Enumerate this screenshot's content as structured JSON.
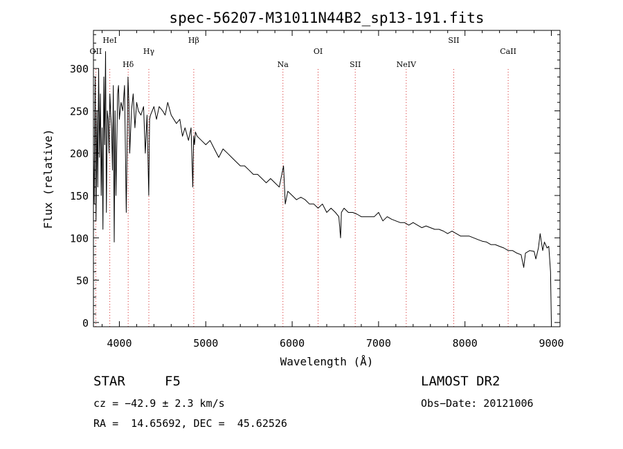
{
  "chart_data": {
    "type": "line",
    "title": "spec-56207-M31011N44B2_sp13-191.fits",
    "xlabel": "Wavelength (Å)",
    "ylabel": "Flux (relative)",
    "xlim": [
      3700,
      9100
    ],
    "ylim": [
      -5,
      345
    ],
    "xticks": [
      4000,
      5000,
      6000,
      7000,
      8000,
      9000
    ],
    "yticks": [
      0,
      50,
      100,
      150,
      200,
      250,
      300
    ],
    "grid": false,
    "line_color": "#000000",
    "marker_color": "#d62728",
    "series": [
      {
        "x": [
          3700,
          3710,
          3720,
          3730,
          3740,
          3750,
          3760,
          3770,
          3780,
          3790,
          3800,
          3810,
          3820,
          3830,
          3840,
          3850,
          3860,
          3870,
          3880,
          3890,
          3900,
          3910,
          3920,
          3930,
          3940,
          3950,
          3960,
          3970,
          3980,
          3990,
          4000,
          4020,
          4040,
          4060,
          4080,
          4100,
          4110,
          4120,
          4140,
          4160,
          4180,
          4200,
          4220,
          4250,
          4280,
          4300,
          4320,
          4340,
          4350,
          4360,
          4380,
          4400,
          4430,
          4460,
          4500,
          4530,
          4560,
          4600,
          4630,
          4660,
          4700,
          4730,
          4760,
          4800,
          4830,
          4850,
          4860,
          4870,
          4880,
          4900,
          4950,
          5000,
          5050,
          5100,
          5150,
          5200,
          5250,
          5300,
          5350,
          5400,
          5450,
          5500,
          5550,
          5600,
          5650,
          5700,
          5750,
          5800,
          5850,
          5900,
          5920,
          5950,
          6000,
          6050,
          6100,
          6150,
          6200,
          6250,
          6300,
          6350,
          6400,
          6450,
          6500,
          6540,
          6560,
          6570,
          6600,
          6650,
          6700,
          6750,
          6800,
          6850,
          6900,
          6950,
          7000,
          7050,
          7100,
          7150,
          7200,
          7250,
          7300,
          7350,
          7400,
          7450,
          7500,
          7550,
          7600,
          7650,
          7700,
          7750,
          7800,
          7850,
          7900,
          7950,
          8000,
          8050,
          8100,
          8150,
          8200,
          8250,
          8300,
          8350,
          8400,
          8450,
          8500,
          8550,
          8600,
          8650,
          8680,
          8700,
          8750,
          8800,
          8820,
          8850,
          8870,
          8900,
          8920,
          8950,
          8970,
          8990,
          9000
        ],
        "y": [
          200,
          140,
          290,
          120,
          250,
          160,
          300,
          195,
          270,
          150,
          230,
          110,
          290,
          210,
          320,
          130,
          250,
          240,
          200,
          270,
          245,
          230,
          180,
          280,
          95,
          250,
          150,
          210,
          270,
          280,
          240,
          260,
          250,
          280,
          130,
          290,
          260,
          200,
          250,
          270,
          230,
          260,
          250,
          245,
          255,
          200,
          245,
          150,
          240,
          245,
          250,
          255,
          240,
          255,
          250,
          245,
          260,
          245,
          240,
          235,
          240,
          220,
          230,
          215,
          230,
          160,
          220,
          210,
          225,
          220,
          215,
          210,
          215,
          205,
          195,
          205,
          200,
          195,
          190,
          185,
          185,
          180,
          175,
          175,
          170,
          165,
          170,
          165,
          160,
          185,
          140,
          155,
          150,
          145,
          148,
          145,
          140,
          140,
          135,
          140,
          130,
          135,
          130,
          125,
          100,
          130,
          135,
          130,
          130,
          128,
          125,
          125,
          125,
          125,
          130,
          120,
          125,
          122,
          120,
          118,
          118,
          115,
          118,
          115,
          112,
          114,
          112,
          110,
          110,
          108,
          105,
          108,
          105,
          102,
          102,
          102,
          100,
          98,
          96,
          95,
          92,
          92,
          90,
          88,
          85,
          85,
          82,
          80,
          65,
          82,
          85,
          84,
          75,
          88,
          105,
          85,
          95,
          88,
          90,
          60,
          0
        ]
      }
    ],
    "line_markers": [
      {
        "label": "OII",
        "x": 3727,
        "row": 1
      },
      {
        "label": "HeI",
        "x": 3889,
        "row": 0
      },
      {
        "label": "Hδ",
        "x": 4102,
        "row": 2
      },
      {
        "label": "Hγ",
        "x": 4341,
        "row": 1
      },
      {
        "label": "Hβ",
        "x": 4861,
        "row": 0
      },
      {
        "label": "Na",
        "x": 5893,
        "row": 2
      },
      {
        "label": "OI",
        "x": 6300,
        "row": 1
      },
      {
        "label": "SII",
        "x": 6730,
        "row": 2
      },
      {
        "label": "NeIV",
        "x": 7320,
        "row": 2
      },
      {
        "label": "SII",
        "x": 7870,
        "row": 0
      },
      {
        "label": "CaII",
        "x": 8500,
        "row": 1
      }
    ]
  },
  "info": {
    "object_class": "STAR",
    "subclass": "F5",
    "survey": "LAMOST DR2",
    "cz": "cz = −42.9 ± 2.3 km/s",
    "obs_date": "Obs−Date: 20121006",
    "coords": "RA =  14.65692, DEC =  45.62526"
  }
}
